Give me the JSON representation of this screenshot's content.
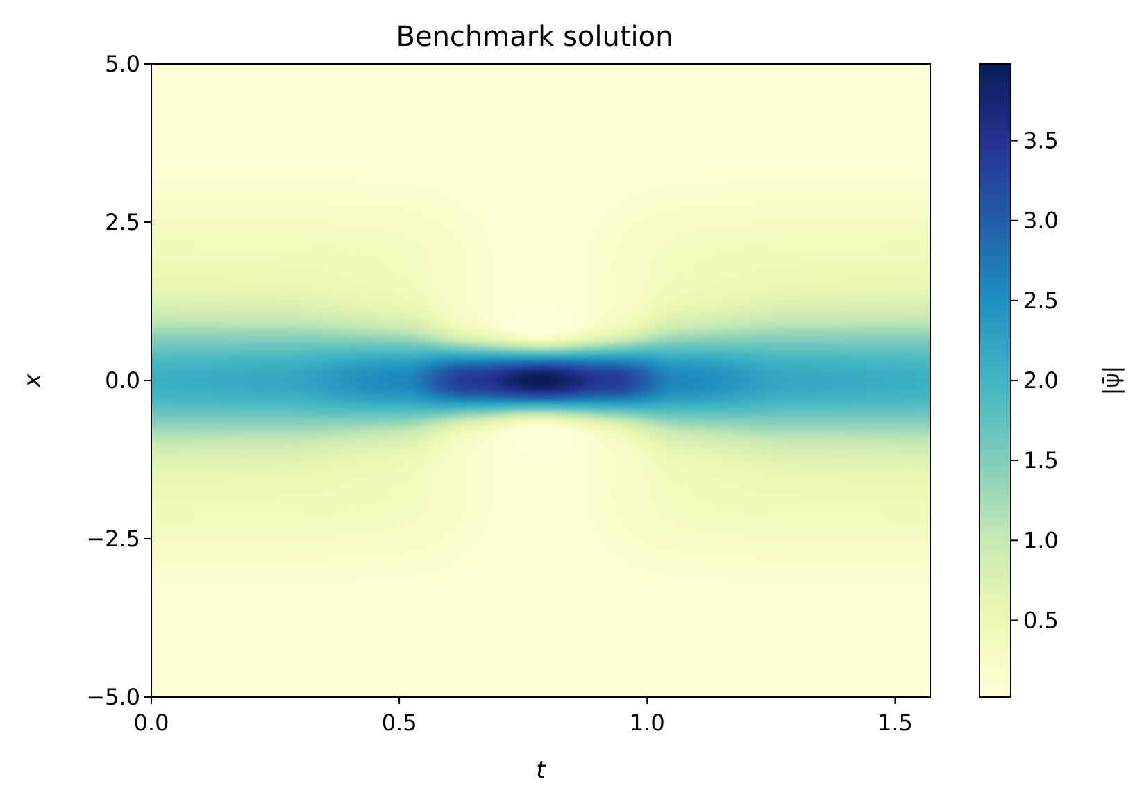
{
  "chart_data": {
    "type": "heatmap",
    "title": "Benchmark solution",
    "xlabel": "t",
    "ylabel": "x",
    "xlim": [
      0.0,
      1.5708
    ],
    "ylim": [
      -5.0,
      5.0
    ],
    "x_ticks": [
      "0.0",
      "0.5",
      "1.0",
      "1.5"
    ],
    "x_tick_values": [
      0.0,
      0.5,
      1.0,
      1.5
    ],
    "y_ticks": [
      "5.0",
      "2.5",
      "0.0",
      "−2.5",
      "−5.0"
    ],
    "y_tick_values": [
      5.0,
      2.5,
      0.0,
      -2.5,
      -5.0
    ],
    "colorbar": {
      "label": "|ψ̄|",
      "range": [
        0.02,
        3.98
      ],
      "ticks": [
        "0.5",
        "1.0",
        "1.5",
        "2.0",
        "2.5",
        "3.0",
        "3.5"
      ],
      "tick_values": [
        0.5,
        1.0,
        1.5,
        2.0,
        2.5,
        3.0,
        3.5
      ],
      "colormap": "YlGnBu",
      "colormap_stops": [
        "#ffffd9",
        "#edf8b1",
        "#c7e9b4",
        "#7fcdbb",
        "#41b6c4",
        "#1d91c0",
        "#225ea8",
        "#253494",
        "#081d58"
      ]
    },
    "field": {
      "description_values": "peak |psi| along x=0 versus t",
      "t": [
        0.0,
        0.25,
        0.5,
        0.65,
        0.785,
        0.92,
        1.07,
        1.3,
        1.57
      ],
      "peak": [
        2.0,
        2.1,
        2.5,
        3.4,
        3.98,
        3.4,
        2.5,
        2.1,
        2.0
      ]
    }
  }
}
